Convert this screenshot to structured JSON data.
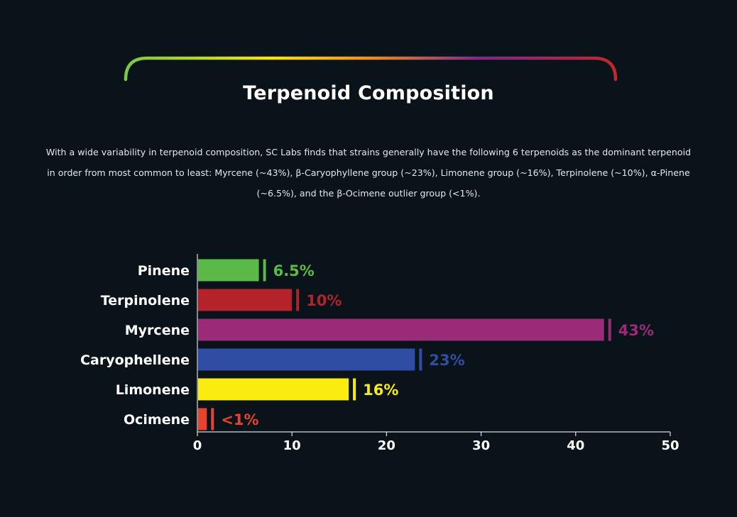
{
  "title": "Terpenoid Composition",
  "description": "With a wide variability in terpenoid composition, SC Labs finds that strains generally have the following 6 terpenoids as the dominant terpenoid in order from most common to least: Myrcene (~43%), β-Caryophyllene group (~23%), Limonene group (~16%), Terpinolene (~10%), α-Pinene (~6.5%), and the β-Ocimene outlier group (<1%).",
  "colors": {
    "background": "#0b131a",
    "arc_gradient": [
      "#7ac943",
      "#f7e31a",
      "#f28c1e",
      "#7b2a8c",
      "#c1272d"
    ]
  },
  "chart_data": {
    "type": "bar",
    "orientation": "horizontal",
    "categories": [
      "Pinene",
      "Terpinolene",
      "Myrcene",
      "Caryophellene",
      "Limonene",
      "Ocimene"
    ],
    "values": [
      6.5,
      10,
      43,
      23,
      16,
      1
    ],
    "value_labels": [
      "6.5%",
      "10%",
      "43%",
      "23%",
      "16%",
      "<1%"
    ],
    "colors": [
      "#5bba47",
      "#b4222a",
      "#9b2a78",
      "#2f4ea3",
      "#f9ec0e",
      "#e8432c"
    ],
    "xlim": [
      0,
      50
    ],
    "xticks": [
      0,
      10,
      20,
      30,
      40,
      50
    ],
    "grid": false,
    "legend": "none"
  }
}
